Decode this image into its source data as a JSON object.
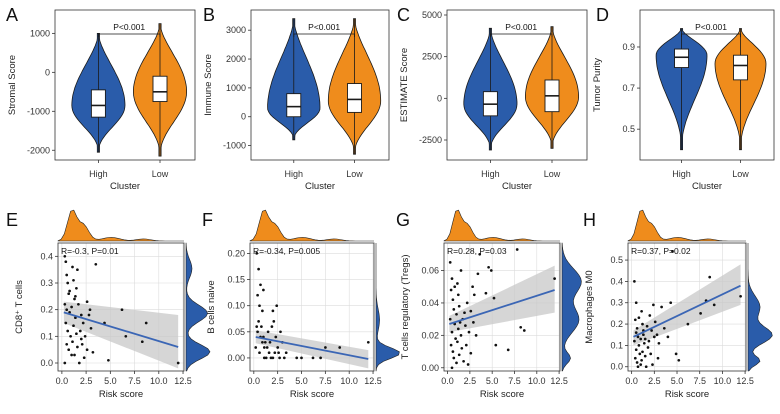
{
  "colors": {
    "high": "#2a5caa",
    "low": "#ef8c1c",
    "fit_line": "#3b66b5",
    "ci_band": "#c8c8c8",
    "point": "#111111"
  },
  "chart_data": [
    {
      "panel": "A",
      "type": "violin",
      "ylabel": "Stromal Score",
      "xlabel": "Cluster",
      "categories": [
        "High",
        "Low"
      ],
      "yticks": [
        -2000,
        -1000,
        0,
        1000
      ],
      "ylim": [
        -2250,
        1600
      ],
      "pvalue": "P<0.001",
      "groups": [
        {
          "name": "High",
          "min": -2050,
          "q1": -1150,
          "median": -850,
          "q3": -450,
          "max": 1000,
          "mode": -850
        },
        {
          "name": "Low",
          "min": -2150,
          "q1": -750,
          "median": -500,
          "q3": -100,
          "max": 1250,
          "mode": -500
        }
      ]
    },
    {
      "panel": "B",
      "type": "violin",
      "ylabel": "Immune Score",
      "xlabel": "Cluster",
      "categories": [
        "High",
        "Low"
      ],
      "yticks": [
        -1000,
        0,
        1000,
        2000,
        3000
      ],
      "ylim": [
        -1500,
        3700
      ],
      "pvalue": "P<0.001",
      "groups": [
        {
          "name": "High",
          "min": -800,
          "q1": 0,
          "median": 350,
          "q3": 800,
          "max": 3400,
          "mode": 300
        },
        {
          "name": "Low",
          "min": -1300,
          "q1": 150,
          "median": 600,
          "q3": 1150,
          "max": 3400,
          "mode": 550
        }
      ]
    },
    {
      "panel": "C",
      "type": "violin",
      "ylabel": "ESTIMATE Score",
      "xlabel": "Cluster",
      "categories": [
        "High",
        "Low"
      ],
      "yticks": [
        -2500,
        0,
        2500,
        5000
      ],
      "ylim": [
        -3700,
        5300
      ],
      "pvalue": "P<0.001",
      "groups": [
        {
          "name": "High",
          "min": -3100,
          "q1": -1050,
          "median": -350,
          "q3": 400,
          "max": 4200,
          "mode": -350
        },
        {
          "name": "Low",
          "min": -3000,
          "q1": -800,
          "median": 150,
          "q3": 1100,
          "max": 4300,
          "mode": 100
        }
      ]
    },
    {
      "panel": "D",
      "type": "violin",
      "ylabel": "Tumor Purity",
      "xlabel": "Cluster",
      "categories": [
        "High",
        "Low"
      ],
      "yticks": [
        0.5,
        0.7,
        0.9
      ],
      "yticklabels": [
        "0.5",
        "0.7",
        "0.9"
      ],
      "ylim": [
        0.35,
        1.08
      ],
      "pvalue": "P<0.001",
      "groups": [
        {
          "name": "High",
          "min": 0.4,
          "q1": 0.8,
          "median": 0.85,
          "q3": 0.89,
          "max": 0.99,
          "mode": 0.86
        },
        {
          "name": "Low",
          "min": 0.4,
          "q1": 0.74,
          "median": 0.81,
          "q3": 0.86,
          "max": 0.99,
          "mode": 0.82
        }
      ]
    },
    {
      "panel": "E",
      "type": "scatter",
      "xlabel": "Risk score",
      "ylabel": "CD8⁺ T cells",
      "annotation": "R=-0.3, P=0.01",
      "xticks": [
        0,
        2.5,
        5,
        7.5,
        10,
        12.5
      ],
      "xticklabels": [
        "0.0",
        "2.5",
        "5.0",
        "7.5",
        "10.0",
        "12.5"
      ],
      "yticks": [
        0,
        0.1,
        0.2,
        0.3,
        0.4
      ],
      "yticklabels": [
        "0.0",
        "0.1",
        "0.2",
        "0.3",
        "0.4"
      ],
      "xlim": [
        -0.4,
        12.6
      ],
      "ylim": [
        -0.03,
        0.45
      ],
      "fit": {
        "x0": 0.2,
        "y0": 0.19,
        "x1": 12.0,
        "y1": 0.06
      },
      "ci": {
        "lo0": 0.15,
        "hi0": 0.23,
        "lo1": -0.02,
        "hi1": 0.18
      },
      "points": [
        [
          0.3,
          0.4
        ],
        [
          0.4,
          0.38
        ],
        [
          0.5,
          0.33
        ],
        [
          0.6,
          0.3
        ],
        [
          0.7,
          0.26
        ],
        [
          0.3,
          0.22
        ],
        [
          0.5,
          0.2
        ],
        [
          0.8,
          0.19
        ],
        [
          0.4,
          0.15
        ],
        [
          0.6,
          0.12
        ],
        [
          0.9,
          0.1
        ],
        [
          0.5,
          0.07
        ],
        [
          0.7,
          0.05
        ],
        [
          1.0,
          0.03
        ],
        [
          0.3,
          0.0
        ],
        [
          1.1,
          0.36
        ],
        [
          1.2,
          0.31
        ],
        [
          1.3,
          0.24
        ],
        [
          1.0,
          0.21
        ],
        [
          1.4,
          0.17
        ],
        [
          1.2,
          0.14
        ],
        [
          1.5,
          0.11
        ],
        [
          1.1,
          0.08
        ],
        [
          1.6,
          0.06
        ],
        [
          1.3,
          0.03
        ],
        [
          1.8,
          0.0
        ],
        [
          1.5,
          0.28
        ],
        [
          1.7,
          0.22
        ],
        [
          2.0,
          0.18
        ],
        [
          2.2,
          0.15
        ],
        [
          1.9,
          0.12
        ],
        [
          2.4,
          0.1
        ],
        [
          2.1,
          0.07
        ],
        [
          2.6,
          0.05
        ],
        [
          2.3,
          0.02
        ],
        [
          2.8,
          0.18
        ],
        [
          3.0,
          0.13
        ],
        [
          3.2,
          0.04
        ],
        [
          2.9,
          0.2
        ],
        [
          3.5,
          0.37
        ],
        [
          2.6,
          0.23
        ],
        [
          1.6,
          0.35
        ],
        [
          4.4,
          0.15
        ],
        [
          4.8,
          0.01
        ],
        [
          6.2,
          0.2
        ],
        [
          6.6,
          0.1
        ],
        [
          8.3,
          0.08
        ],
        [
          8.7,
          0.15
        ],
        [
          12.0,
          0.0
        ],
        [
          0.8,
          0.27
        ],
        [
          1.4,
          0.25
        ],
        [
          2.0,
          0.09
        ]
      ],
      "top_density": {
        "peak": 0.9,
        "shape": "right-skewed"
      },
      "right_density": {
        "peak": 0.12,
        "shape": "bimodal-low"
      }
    },
    {
      "panel": "F",
      "type": "scatter",
      "xlabel": "Risk score",
      "ylabel": "B cells naive",
      "annotation": "R=-0.34, P=0.005",
      "xticks": [
        0,
        2.5,
        5,
        7.5,
        10,
        12.5
      ],
      "xticklabels": [
        "0.0",
        "2.5",
        "5.0",
        "7.5",
        "10.0",
        "12.5"
      ],
      "yticks": [
        0,
        0.05,
        0.1,
        0.15,
        0.2
      ],
      "yticklabels": [
        "0.00",
        "0.05",
        "0.10",
        "0.15",
        "0.20"
      ],
      "xlim": [
        -0.4,
        12.6
      ],
      "ylim": [
        -0.025,
        0.22
      ],
      "fit": {
        "x0": 0.2,
        "y0": 0.04,
        "x1": 12.0,
        "y1": -0.002
      },
      "ci": {
        "lo0": 0.028,
        "hi0": 0.053,
        "lo1": -0.02,
        "hi1": 0.015
      },
      "points": [
        [
          0.3,
          0.2
        ],
        [
          0.5,
          0.17
        ],
        [
          0.7,
          0.14
        ],
        [
          0.4,
          0.12
        ],
        [
          0.6,
          0.1
        ],
        [
          0.9,
          0.09
        ],
        [
          0.5,
          0.07
        ],
        [
          0.8,
          0.06
        ],
        [
          0.4,
          0.05
        ],
        [
          0.7,
          0.04
        ],
        [
          1.0,
          0.04
        ],
        [
          1.2,
          0.03
        ],
        [
          0.9,
          0.03
        ],
        [
          1.4,
          0.02
        ],
        [
          1.1,
          0.02
        ],
        [
          0.6,
          0.01
        ],
        [
          1.6,
          0.01
        ],
        [
          1.3,
          0.0
        ],
        [
          1.8,
          0.0
        ],
        [
          2.0,
          0.0
        ],
        [
          2.2,
          0.01
        ],
        [
          1.5,
          0.05
        ],
        [
          1.9,
          0.06
        ],
        [
          2.3,
          0.04
        ],
        [
          2.5,
          0.02
        ],
        [
          2.7,
          0.0
        ],
        [
          2.1,
          0.07
        ],
        [
          2.8,
          0.05
        ],
        [
          3.0,
          0.03
        ],
        [
          2.4,
          0.1
        ],
        [
          3.2,
          0.0
        ],
        [
          0.2,
          0.02
        ],
        [
          1.7,
          0.03
        ],
        [
          2.6,
          0.01
        ],
        [
          3.4,
          0.01
        ],
        [
          4.5,
          0.0
        ],
        [
          5.0,
          0.0
        ],
        [
          6.2,
          0.0
        ],
        [
          7.0,
          0.0
        ],
        [
          7.5,
          0.02
        ],
        [
          9.0,
          0.02
        ],
        [
          12.0,
          0.03
        ],
        [
          1.0,
          0.13
        ],
        [
          2.0,
          0.09
        ],
        [
          0.3,
          0.06
        ],
        [
          1.1,
          0.0
        ]
      ],
      "top_density": {
        "peak": 1.1,
        "shape": "right-skewed"
      },
      "right_density": {
        "peak": 0.02,
        "shape": "right-skewed"
      }
    },
    {
      "panel": "G",
      "type": "scatter",
      "xlabel": "Risk score",
      "ylabel": "T cells regulatory (Tregs)",
      "annotation": "R=0.28, P=0.03",
      "xticks": [
        0,
        2.5,
        5,
        7.5,
        10,
        12.5
      ],
      "xticklabels": [
        "0.0",
        "2.5",
        "5.0",
        "7.5",
        "10.0",
        "12.5"
      ],
      "yticks": [
        0,
        0.02,
        0.04,
        0.06
      ],
      "yticklabels": [
        "0.00",
        "0.02",
        "0.04",
        "0.06"
      ],
      "xlim": [
        -0.4,
        12.6
      ],
      "ylim": [
        -0.002,
        0.077
      ],
      "fit": {
        "x0": 0.2,
        "y0": 0.027,
        "x1": 12.0,
        "y1": 0.048
      },
      "ci": {
        "lo0": 0.022,
        "hi0": 0.032,
        "lo1": 0.034,
        "hi1": 0.063
      },
      "points": [
        [
          0.3,
          0.065
        ],
        [
          0.5,
          0.055
        ],
        [
          0.4,
          0.048
        ],
        [
          0.6,
          0.042
        ],
        [
          0.7,
          0.036
        ],
        [
          0.3,
          0.03
        ],
        [
          0.8,
          0.027
        ],
        [
          0.5,
          0.022
        ],
        [
          0.9,
          0.018
        ],
        [
          0.4,
          0.014
        ],
        [
          0.6,
          0.01
        ],
        [
          0.7,
          0.006
        ],
        [
          1.0,
          0.003
        ],
        [
          0.5,
          0.0
        ],
        [
          1.1,
          0.052
        ],
        [
          1.2,
          0.045
        ],
        [
          1.3,
          0.038
        ],
        [
          1.0,
          0.033
        ],
        [
          1.4,
          0.028
        ],
        [
          1.2,
          0.024
        ],
        [
          1.5,
          0.02
        ],
        [
          1.1,
          0.016
        ],
        [
          1.6,
          0.012
        ],
        [
          1.3,
          0.008
        ],
        [
          1.8,
          0.004
        ],
        [
          1.5,
          0.06
        ],
        [
          1.7,
          0.03
        ],
        [
          2.0,
          0.026
        ],
        [
          2.2,
          0.04
        ],
        [
          1.9,
          0.034
        ],
        [
          2.4,
          0.022
        ],
        [
          2.1,
          0.014
        ],
        [
          2.6,
          0.009
        ],
        [
          2.3,
          0.002
        ],
        [
          2.8,
          0.05
        ],
        [
          3.0,
          0.045
        ],
        [
          3.2,
          0.02
        ],
        [
          2.9,
          0.028
        ],
        [
          3.4,
          0.058
        ],
        [
          2.6,
          0.035
        ],
        [
          3.6,
          0.07
        ],
        [
          4.6,
          0.062
        ],
        [
          4.9,
          0.06
        ],
        [
          5.2,
          0.043
        ],
        [
          4.3,
          0.046
        ],
        [
          5.4,
          0.014
        ],
        [
          6.8,
          0.011
        ],
        [
          7.8,
          0.073
        ],
        [
          8.2,
          0.025
        ],
        [
          8.6,
          0.023
        ],
        [
          12.0,
          0.055
        ],
        [
          0.8,
          0.05
        ]
      ],
      "top_density": {
        "peak": 1.0,
        "shape": "right-skewed"
      },
      "right_density": {
        "peak": 0.03,
        "shape": "broad"
      }
    },
    {
      "panel": "H",
      "type": "scatter",
      "xlabel": "Risk score",
      "ylabel": "Macrophages M0",
      "annotation": "R=0.37, P=0.02",
      "xticks": [
        0,
        2.5,
        5,
        7.5,
        10,
        12.5
      ],
      "xticklabels": [
        "0.0",
        "2.5",
        "5.0",
        "7.5",
        "10.0",
        "12.5"
      ],
      "yticks": [
        0,
        0.1,
        0.2,
        0.3,
        0.4,
        0.5
      ],
      "yticklabels": [
        "0.0",
        "0.1",
        "0.2",
        "0.3",
        "0.4",
        "0.5"
      ],
      "xlim": [
        -0.4,
        12.6
      ],
      "ylim": [
        -0.02,
        0.58
      ],
      "fit": {
        "x0": 0.2,
        "y0": 0.14,
        "x1": 12.0,
        "y1": 0.38
      },
      "ci": {
        "lo0": 0.1,
        "hi0": 0.17,
        "lo1": 0.29,
        "hi1": 0.48
      },
      "points": [
        [
          0.3,
          0.4
        ],
        [
          0.5,
          0.3
        ],
        [
          0.4,
          0.22
        ],
        [
          0.6,
          0.18
        ],
        [
          0.7,
          0.14
        ],
        [
          0.3,
          0.12
        ],
        [
          0.8,
          0.1
        ],
        [
          0.5,
          0.08
        ],
        [
          0.9,
          0.06
        ],
        [
          0.4,
          0.04
        ],
        [
          0.6,
          0.02
        ],
        [
          0.7,
          0.0
        ],
        [
          1.0,
          0.01
        ],
        [
          0.5,
          0.16
        ],
        [
          1.1,
          0.26
        ],
        [
          1.2,
          0.2
        ],
        [
          1.3,
          0.15
        ],
        [
          1.0,
          0.13
        ],
        [
          1.4,
          0.11
        ],
        [
          1.2,
          0.07
        ],
        [
          1.5,
          0.05
        ],
        [
          1.1,
          0.03
        ],
        [
          1.6,
          0.0
        ],
        [
          1.3,
          0.17
        ],
        [
          1.8,
          0.09
        ],
        [
          1.5,
          0.13
        ],
        [
          1.7,
          0.19
        ],
        [
          2.0,
          0.24
        ],
        [
          2.2,
          0.17
        ],
        [
          1.9,
          0.12
        ],
        [
          2.4,
          0.29
        ],
        [
          2.1,
          0.06
        ],
        [
          2.6,
          0.21
        ],
        [
          2.3,
          0.01
        ],
        [
          2.8,
          0.15
        ],
        [
          3.0,
          0.11
        ],
        [
          3.3,
          0.28
        ],
        [
          2.9,
          0.04
        ],
        [
          3.6,
          0.18
        ],
        [
          2.5,
          0.14
        ],
        [
          4.0,
          0.14
        ],
        [
          4.3,
          0.3
        ],
        [
          4.5,
          0.54
        ],
        [
          4.9,
          0.06
        ],
        [
          5.2,
          0.03
        ],
        [
          6.2,
          0.2
        ],
        [
          7.6,
          0.25
        ],
        [
          8.2,
          0.31
        ],
        [
          8.6,
          0.42
        ],
        [
          9.1,
          0.29
        ],
        [
          12.0,
          0.33
        ],
        [
          0.8,
          0.23
        ]
      ],
      "top_density": {
        "peak": 1.0,
        "shape": "right-skewed"
      },
      "right_density": {
        "peak": 0.15,
        "shape": "right-skewed"
      }
    }
  ]
}
